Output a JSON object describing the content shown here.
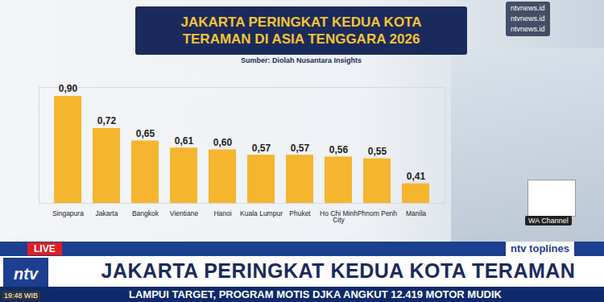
{
  "chart_data": {
    "type": "bar",
    "title": "JAKARTA PERINGKAT KEDUA KOTA TERAMAN DI ASIA TENGGARA 2026",
    "subtitle": "Sumber: Diolah Nusantara Insights",
    "categories": [
      "Singapura",
      "Jakarta",
      "Bangkok",
      "Vientiane",
      "Hanoi",
      "Kuala Lumpur",
      "Phuket",
      "Ho Chi Minh City",
      "Phnom Penh",
      "Manila"
    ],
    "values": [
      0.9,
      0.72,
      0.65,
      0.61,
      0.6,
      0.57,
      0.57,
      0.56,
      0.55,
      0.41
    ],
    "value_labels": [
      "0,90",
      "0,72",
      "0,65",
      "0,61",
      "0,60",
      "0,57",
      "0,57",
      "0,56",
      "0,55",
      "0,41"
    ],
    "color": "#f5b52e",
    "ylim": [
      0.3,
      0.95
    ],
    "grid": false,
    "data_labels": true,
    "tick_labels": "x"
  },
  "social": [
    "ntvnews.id",
    "ntvnews.id",
    "ntvnews.id"
  ],
  "wa_channel": "WA Channel",
  "live": "LIVE",
  "brand": "ntv toplines",
  "logo": "ntv",
  "headline": "JAKARTA PERINGKAT KEDUA KOTA TERAMAN",
  "ticker": "LAMPUI TARGET, PROGRAM MOTIS DJKA ANGKUT 12.419 MOTOR MUDIK",
  "time": "19:48 WIB"
}
